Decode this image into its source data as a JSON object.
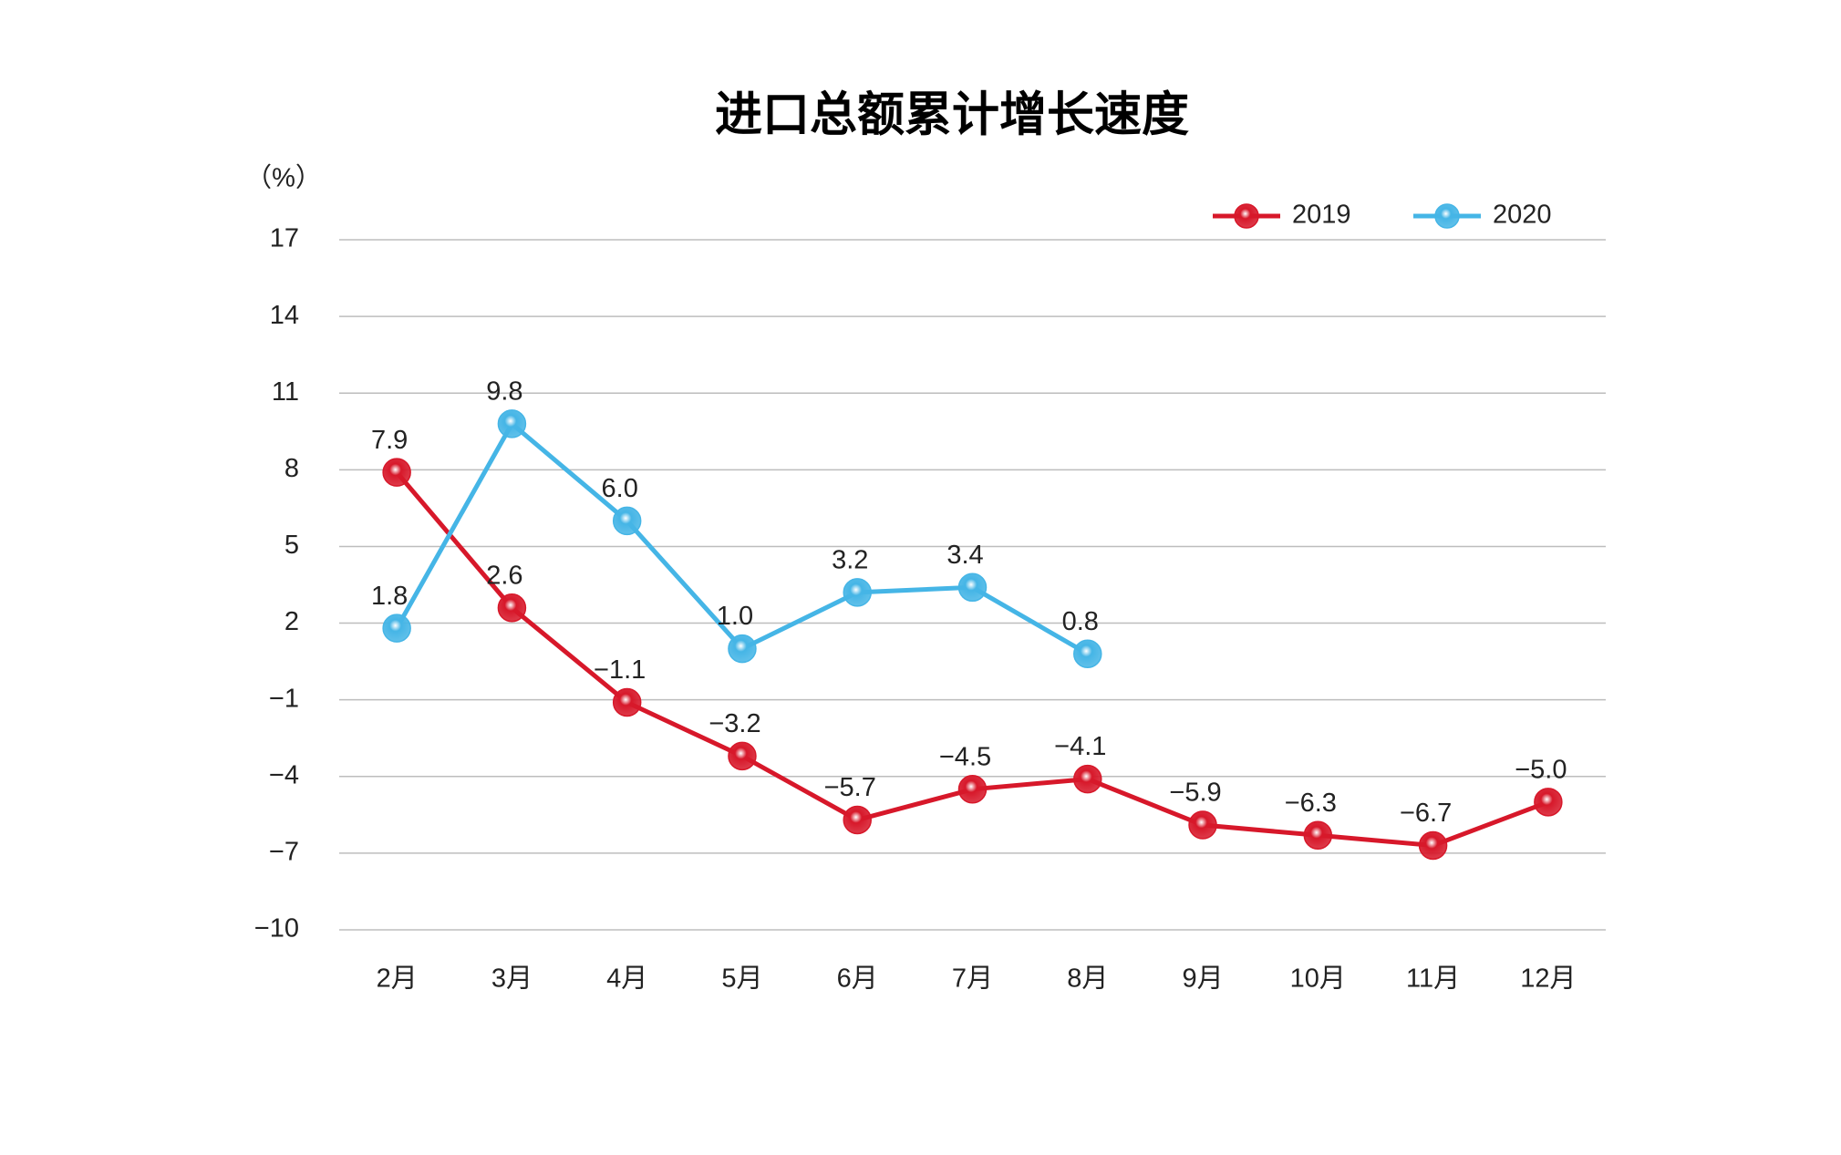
{
  "chart_data": {
    "type": "line",
    "title": "进口总额累计增长速度",
    "y_unit_label": "（%）",
    "categories": [
      "2月",
      "3月",
      "4月",
      "5月",
      "6月",
      "7月",
      "8月",
      "9月",
      "10月",
      "11月",
      "12月"
    ],
    "series": [
      {
        "name": "2019",
        "color": "#d7182a",
        "label_color": "#d7182a",
        "values": [
          7.9,
          2.6,
          -1.1,
          -3.2,
          -5.7,
          -4.5,
          -4.1,
          -5.9,
          -6.3,
          -6.7,
          -5.0
        ],
        "value_labels": [
          "7.9",
          "2.6",
          "−1.1",
          "−3.2",
          "−5.7",
          "−4.5",
          "−4.1",
          "−5.9",
          "−6.3",
          "−6.7",
          "−5.0"
        ]
      },
      {
        "name": "2020",
        "color": "#45b5e6",
        "label_color": "#8595c6",
        "values": [
          1.8,
          9.8,
          6.0,
          1.0,
          3.2,
          3.4,
          0.8,
          null,
          null,
          null,
          null
        ],
        "value_labels": [
          "1.8",
          "9.8",
          "6.0",
          "1.0",
          "3.2",
          "3.4",
          "0.8",
          null,
          null,
          null,
          null
        ]
      }
    ],
    "ylim": [
      -10,
      17
    ],
    "yticks": [
      17,
      14,
      11,
      8,
      5,
      2,
      {
        "value": -1,
        "label": "−1"
      },
      {
        "value": -4,
        "label": "−4"
      },
      {
        "value": -7,
        "label": "−7"
      },
      {
        "value": -10,
        "label": "−10"
      }
    ],
    "grid": true,
    "legend": "top-right"
  }
}
